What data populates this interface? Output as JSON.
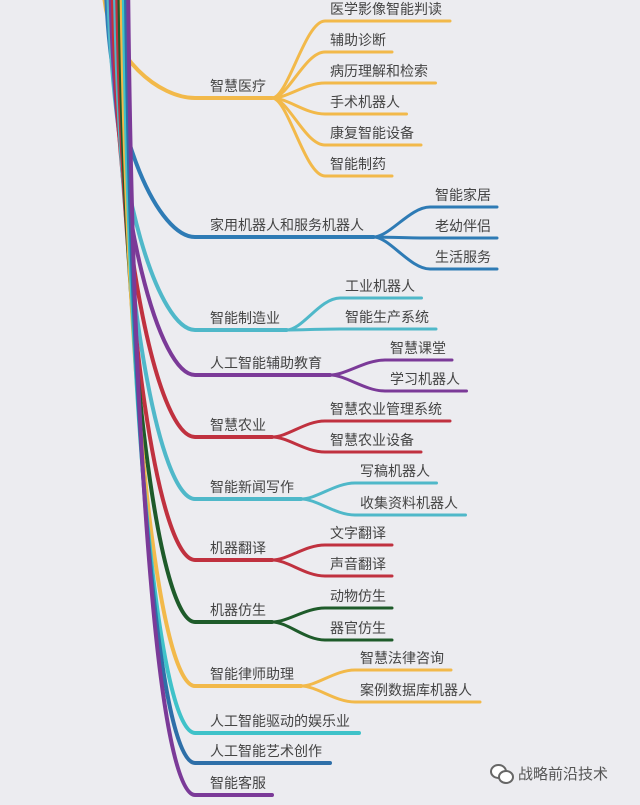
{
  "branches": [
    {
      "label": "智慧医疗",
      "color": "#f2b94a",
      "children": [
        "医学影像智能判读",
        "辅助诊断",
        "病历理解和检索",
        "手术机器人",
        "康复智能设备",
        "智能制药"
      ]
    },
    {
      "label": "家用机器人和服务机器人",
      "color": "#2e7bb5",
      "children": [
        "智能家居",
        "老幼伴侣",
        "生活服务"
      ]
    },
    {
      "label": "智能制造业",
      "color": "#4fb8c9",
      "children": [
        "工业机器人",
        "智能生产系统"
      ]
    },
    {
      "label": "人工智能辅助教育",
      "color": "#7b3a98",
      "children": [
        "智慧课堂",
        "学习机器人"
      ]
    },
    {
      "label": "智慧农业",
      "color": "#c0313f",
      "children": [
        "智慧农业管理系统",
        "智慧农业设备"
      ]
    },
    {
      "label": "智能新闻写作",
      "color": "#4fb8c9",
      "children": [
        "写稿机器人",
        "收集资料机器人"
      ]
    },
    {
      "label": "机器翻译",
      "color": "#c0313f",
      "children": [
        "文字翻译",
        "声音翻译"
      ]
    },
    {
      "label": "机器仿生",
      "color": "#1e5b2a",
      "children": [
        "动物仿生",
        "器官仿生"
      ]
    },
    {
      "label": "智能律师助理",
      "color": "#f2b94a",
      "children": [
        "智慧法律咨询",
        "案例数据库机器人"
      ]
    },
    {
      "label": "人工智能驱动的娱乐业",
      "color": "#3fc2c9",
      "children": []
    },
    {
      "label": "人工智能艺术创作",
      "color": "#2e6fa8",
      "children": []
    },
    {
      "label": "智能客服",
      "color": "#7b3a98",
      "children": []
    }
  ],
  "watermark": {
    "text": "战略前沿技术",
    "icon": "wechat-icon"
  }
}
